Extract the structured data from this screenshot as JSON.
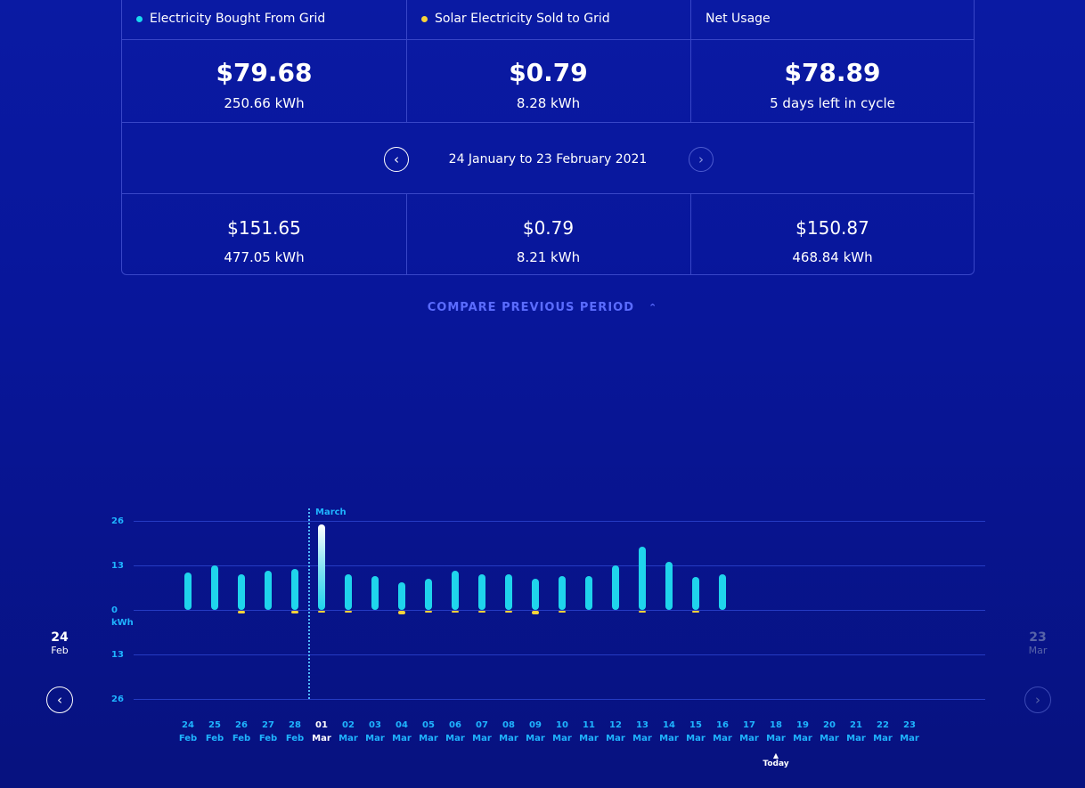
{
  "summary": {
    "headers": [
      {
        "label": "Electricity Bought From Grid",
        "dot": "#18d9f0"
      },
      {
        "label": "Solar Electricity Sold to Grid",
        "dot": "#f7d33a"
      },
      {
        "label": "Net Usage",
        "dot": ""
      }
    ],
    "current": [
      {
        "amount": "$79.68",
        "detail": "250.66 kWh"
      },
      {
        "amount": "$0.79",
        "detail": "8.28 kWh"
      },
      {
        "amount": "$78.89",
        "detail": "5 days left in cycle"
      }
    ],
    "period_label": "24 January to 23 February 2021",
    "previous": [
      {
        "amount": "$151.65",
        "detail": "477.05 kWh"
      },
      {
        "amount": "$0.79",
        "detail": "8.21 kWh"
      },
      {
        "amount": "$150.87",
        "detail": "468.84 kWh"
      }
    ],
    "prev_icon": "chevron-left-icon",
    "next_icon": "chevron-right-icon"
  },
  "compare_label": "COMPARE PREVIOUS PERIOD",
  "compare_icon": "chevron-up-icon",
  "side_left": {
    "day": "24",
    "month": "Feb"
  },
  "side_right": {
    "day": "23",
    "month": "Mar"
  },
  "today_label": "Today",
  "colors": {
    "bought": "#1fd4ec",
    "sold": "#f7d33a",
    "accent": "#1fb4ff"
  },
  "chart_data": {
    "type": "bar",
    "unit": "kWh",
    "marker_label": "March",
    "y_ticks_top": [
      "26",
      "13",
      "0"
    ],
    "y_ticks_bottom": [
      "13",
      "26"
    ],
    "ylim": [
      -26,
      26
    ],
    "categories": [
      {
        "day": "24",
        "month": "Feb"
      },
      {
        "day": "25",
        "month": "Feb"
      },
      {
        "day": "26",
        "month": "Feb"
      },
      {
        "day": "27",
        "month": "Feb"
      },
      {
        "day": "28",
        "month": "Feb"
      },
      {
        "day": "01",
        "month": "Mar"
      },
      {
        "day": "02",
        "month": "Mar"
      },
      {
        "day": "03",
        "month": "Mar"
      },
      {
        "day": "04",
        "month": "Mar"
      },
      {
        "day": "05",
        "month": "Mar"
      },
      {
        "day": "06",
        "month": "Mar"
      },
      {
        "day": "07",
        "month": "Mar"
      },
      {
        "day": "08",
        "month": "Mar"
      },
      {
        "day": "09",
        "month": "Mar"
      },
      {
        "day": "10",
        "month": "Mar"
      },
      {
        "day": "11",
        "month": "Mar"
      },
      {
        "day": "12",
        "month": "Mar"
      },
      {
        "day": "13",
        "month": "Mar"
      },
      {
        "day": "14",
        "month": "Mar"
      },
      {
        "day": "15",
        "month": "Mar"
      },
      {
        "day": "16",
        "month": "Mar"
      },
      {
        "day": "17",
        "month": "Mar"
      },
      {
        "day": "18",
        "month": "Mar"
      },
      {
        "day": "19",
        "month": "Mar"
      },
      {
        "day": "20",
        "month": "Mar"
      },
      {
        "day": "21",
        "month": "Mar"
      },
      {
        "day": "22",
        "month": "Mar"
      },
      {
        "day": "23",
        "month": "Mar"
      }
    ],
    "series": [
      {
        "values": [
          11,
          13,
          10.5,
          11.5,
          12,
          25,
          10.5,
          10,
          8,
          9,
          11.5,
          10.5,
          10.5,
          9,
          10,
          10,
          13,
          18.5,
          14,
          9.5,
          10.5,
          null,
          null,
          null,
          null,
          null,
          null,
          null
        ]
      },
      {
        "values": [
          0,
          0,
          -0.8,
          0,
          -0.8,
          -0.5,
          -0.2,
          0,
          -1,
          -0.2,
          -0.5,
          -0.2,
          -0.3,
          -1,
          -0.5,
          0,
          0,
          -0.6,
          0,
          -0.4,
          0,
          null,
          null,
          null,
          null,
          null,
          null,
          null
        ]
      }
    ],
    "selected_index": 5,
    "today_index": 22,
    "highlight_index": 5
  }
}
